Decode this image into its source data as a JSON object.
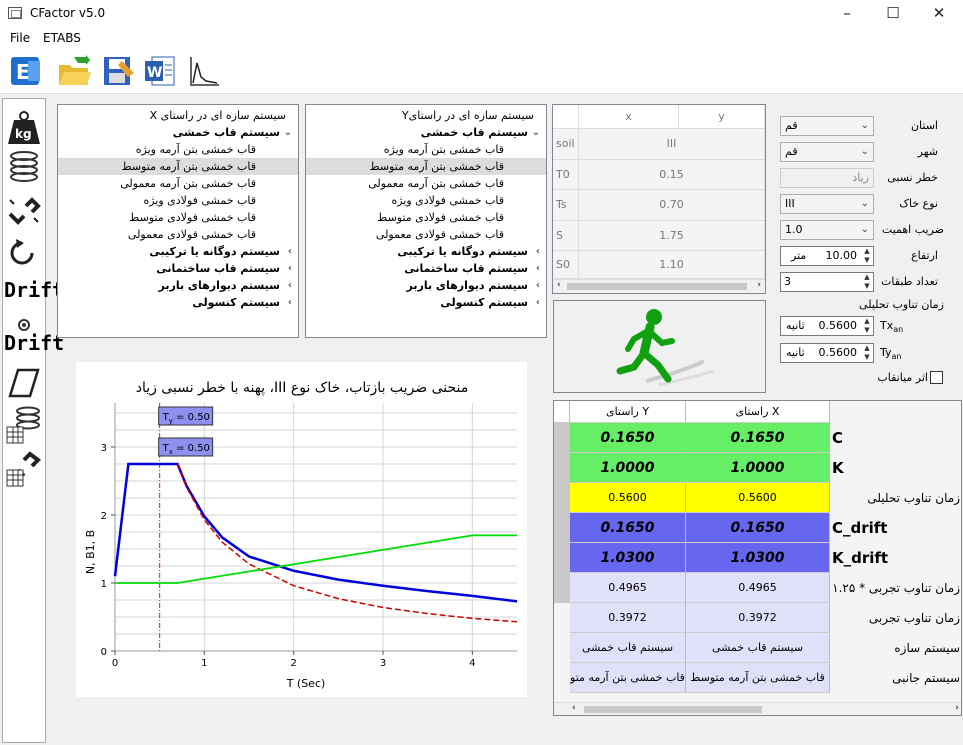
{
  "window": {
    "title": "CFactor v5.0"
  },
  "menu": {
    "file": "File",
    "etabs": "ETABS"
  },
  "left_tools": {
    "drift1": "Drift",
    "drift2": "Drift"
  },
  "tree_x": {
    "header": "سیستم سازه ای در راستای X",
    "group_moment": "سیستم قاب خمشی",
    "items": [
      "قاب خمشی بتن آرمه ویژه",
      "قاب خمشی بتن آرمه متوسط",
      "قاب خمشی بتن آرمه معمولی",
      "قاب خمشی فولادی ویژه",
      "قاب خمشی فولادی متوسط",
      "قاب خمشی فولادی معمولی"
    ],
    "groups": [
      "سیستم دوگانه یا ترکیبی",
      "سیستم قاب ساختمانی",
      "سیستم دیوارهای باربر",
      "سیستم کنسولی"
    ]
  },
  "tree_y": {
    "header": "سیستم سازه ای در راستایY",
    "group_moment": "سیستم قاب خمشی",
    "items": [
      "قاب خمشی بتن آرمه ویژه",
      "قاب خمشی بتن آرمه متوسط",
      "قاب خمشی بتن آرمه معمولی",
      "قاب خمشی فولادی ویژه",
      "قاب خمشی فولادی متوسط",
      "قاب خمشی فولادی معمولی"
    ],
    "groups": [
      "سیستم دوگانه یا ترکیبی",
      "سیستم قاب ساختمانی",
      "سیستم دیوارهای باربر",
      "سیستم کنسولی"
    ]
  },
  "soil_table": {
    "col_x": "x",
    "col_y": "y",
    "rows": [
      {
        "label": "soil",
        "value": "III"
      },
      {
        "label": "T0",
        "value": "0.15"
      },
      {
        "label": "Ts",
        "value": "0.70"
      },
      {
        "label": "S",
        "value": "1.75"
      },
      {
        "label": "S0",
        "value": "1.10"
      }
    ]
  },
  "form": {
    "province_label": "استان",
    "province_value": "قم",
    "city_label": "شهر",
    "city_value": "قم",
    "hazard_label": "خطر نسبی",
    "hazard_value": "زیاد",
    "soil_label": "نوع خاک",
    "soil_value": "III",
    "importance_label": "ضریب اهمیت",
    "importance_value": "1.0",
    "height_label": "ارتفاع",
    "height_value": "10.00",
    "height_unit": "متر",
    "floors_label": "تعداد طبقات",
    "floors_value": "3",
    "period_title": "زمان تناوب تحلیلی",
    "tx_label": "Tx",
    "tx_sub": "an",
    "tx_value": "0.5600",
    "tx_unit": "ثانیه",
    "ty_label": "Ty",
    "ty_sub": "an",
    "ty_value": "0.5600",
    "ty_unit": "ثانیه",
    "infill_label": "اثر میانقاب"
  },
  "chart": {
    "title": "منحنی ضریب بازتاب، خاک نوع III، پهنه با خطر نسبی زیاد",
    "xlabel": "T (Sec)",
    "ylabel": "N, B1, B",
    "ty_tag": "T",
    "ty_tag_sub": "y",
    "ty_tag_val": " = 0.50",
    "tx_tag": "T",
    "tx_tag_sub": "x",
    "tx_tag_val": " = 0.50",
    "x_ticks": [
      "0",
      "1",
      "2",
      "3",
      "4"
    ],
    "y_ticks": [
      "0",
      "1",
      "2",
      "3"
    ]
  },
  "chart_data": {
    "type": "line",
    "title": "منحنی ضریب بازتاب، خاک نوع III، پهنه با خطر نسبی زیاد",
    "xlabel": "T (Sec)",
    "ylabel": "N, B1, B",
    "xlim": [
      0,
      4.5
    ],
    "ylim": [
      0,
      3.5
    ],
    "grid": true,
    "series": [
      {
        "color": "#0000dd",
        "x": [
          0,
          0.15,
          0.7,
          0.8,
          1.0,
          1.2,
          1.5,
          2.0,
          2.5,
          3.0,
          3.5,
          4.0,
          4.5
        ],
        "y": [
          1.1,
          2.75,
          2.75,
          2.43,
          1.98,
          1.67,
          1.39,
          1.18,
          1.05,
          0.96,
          0.88,
          0.81,
          0.73
        ]
      },
      {
        "color": "#cc0000",
        "x": [
          0.7,
          0.8,
          1.0,
          1.2,
          1.5,
          2.0,
          2.5,
          3.0,
          3.5,
          4.0,
          4.5
        ],
        "y": [
          2.75,
          2.41,
          1.93,
          1.6,
          1.28,
          0.96,
          0.77,
          0.64,
          0.55,
          0.48,
          0.43
        ]
      },
      {
        "color": "#00dd00",
        "x": [
          0,
          0.7,
          4.0,
          4.5
        ],
        "y": [
          1.0,
          1.0,
          1.7,
          1.7
        ]
      }
    ],
    "annotations": [
      {
        "label": "Ty = 0.50"
      },
      {
        "label": "Tx = 0.50"
      }
    ],
    "vline_x": 0.5
  },
  "results": {
    "col_y": "راستای Y",
    "col_x": "راستای X",
    "rows": [
      {
        "y": "0.1650",
        "x": "0.1650",
        "label": "C",
        "bg": "#66ee66",
        "style": "big"
      },
      {
        "y": "1.0000",
        "x": "1.0000",
        "label": "K",
        "bg": "#66ee66",
        "style": "big"
      },
      {
        "y": "0.5600",
        "x": "0.5600",
        "label": "زمان تناوب تحلیلی",
        "bg": "#ffff00",
        "style": "normal"
      },
      {
        "y": "0.1650",
        "x": "0.1650",
        "label": "C_drift",
        "bg": "#6666ee",
        "style": "big"
      },
      {
        "y": "1.0300",
        "x": "1.0300",
        "label": "K_drift",
        "bg": "#6666ee",
        "style": "big"
      },
      {
        "y": "0.4965",
        "x": "0.4965",
        "label": "زمان تناوب تجربی * ۱.۲۵",
        "bg": "#e0e0f8",
        "style": "normal"
      },
      {
        "y": "0.3972",
        "x": "0.3972",
        "label": "زمان تناوب تجربی",
        "bg": "#e0e0f8",
        "style": "normal"
      },
      {
        "y": "سیستم قاب خمشی",
        "x": "سیستم قاب خمشی",
        "label": "سیستم سازه",
        "bg": "#e0e0f8",
        "style": "normal"
      },
      {
        "y": "قاب خمشی بتن آرمه متو",
        "x": "قاب خمشی بتن آرمه متوسط",
        "label": "سیستم جانبی",
        "bg": "#e0e0f8",
        "style": "normal"
      }
    ]
  }
}
